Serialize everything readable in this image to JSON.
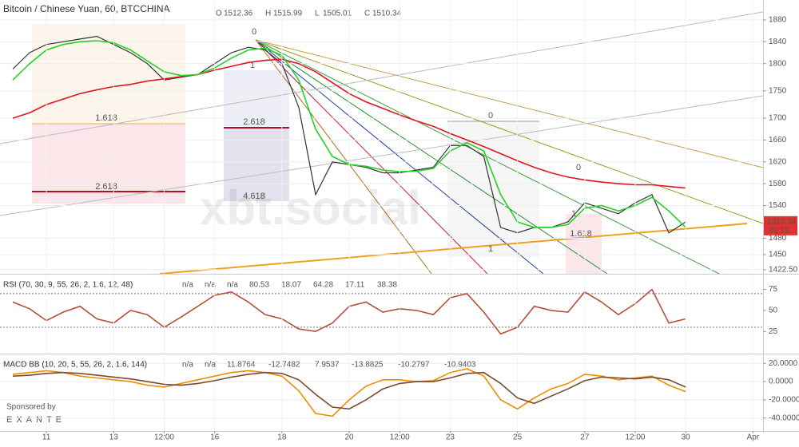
{
  "chart_data": [
    {
      "type": "line",
      "title": "Bitcoin / Chinese Yuan, 60, BTCCHINA",
      "ohlc": [
        {
          "label": "O",
          "value": 1512.36
        },
        {
          "label": "H",
          "value": 1515.99
        },
        {
          "label": "L",
          "value": 1505.01
        },
        {
          "label": "C",
          "value": 1510.34
        }
      ],
      "countdown": "01:19",
      "watermark": "xbt.social",
      "annotations": [
        "0",
        "1",
        "2.618",
        "4.618",
        "1.618",
        "2.618",
        "0",
        "1",
        "0",
        "1.618",
        "1"
      ],
      "x": [
        10,
        10.5,
        11,
        11.5,
        12,
        12.5,
        13,
        13.5,
        14,
        14.5,
        15,
        15.5,
        16,
        16.5,
        17,
        17.5,
        18,
        18.5,
        19,
        19.5,
        20,
        20.5,
        21,
        21.5,
        22,
        22.5,
        23,
        23.5,
        24,
        24.5,
        25,
        25.5,
        26,
        26.5,
        27,
        27.5,
        28,
        28.5,
        29,
        29.5,
        30
      ],
      "xlim": [
        9.62,
        32.3
      ],
      "ylim": [
        1415,
        1916.5
      ],
      "yticks": [
        1880,
        1840,
        1800,
        1750,
        1700,
        1660,
        1620,
        1580,
        1540,
        1480,
        1450,
        {
          "value": 1422.5,
          "label": "1422.50"
        }
      ],
      "grid": true,
      "series": [
        {
          "color": "#333333",
          "values": [
            1790,
            1820,
            1835,
            1840,
            1845,
            1850,
            1835,
            1820,
            1800,
            1770,
            1775,
            1780,
            1800,
            1820,
            1830,
            1825,
            1800,
            1720,
            1560,
            1620,
            1615,
            1610,
            1600,
            1600,
            1605,
            1610,
            1650,
            1650,
            1630,
            1500,
            1490,
            1500,
            1500,
            1510,
            1545,
            1535,
            1525,
            1545,
            1560,
            1490,
            1510
          ]
        },
        {
          "color": "#e0161e",
          "values": [
            1700,
            1710,
            1725,
            1735,
            1745,
            1752,
            1758,
            1762,
            1768,
            1772,
            1776,
            1780,
            1788,
            1795,
            1802,
            1806,
            1808,
            1800,
            1785,
            1765,
            1745,
            1730,
            1718,
            1706,
            1695,
            1685,
            1672,
            1660,
            1648,
            1635,
            1622,
            1610,
            1600,
            1592,
            1587,
            1583,
            1580,
            1578,
            1578,
            1575,
            1572
          ]
        },
        {
          "color": "#22d422",
          "values": [
            1770,
            1800,
            1825,
            1835,
            1840,
            1842,
            1838,
            1825,
            1805,
            1785,
            1778,
            1780,
            1792,
            1810,
            1825,
            1828,
            1815,
            1770,
            1680,
            1630,
            1615,
            1612,
            1605,
            1602,
            1603,
            1608,
            1640,
            1655,
            1640,
            1560,
            1510,
            1500,
            1500,
            1505,
            1535,
            1540,
            1530,
            1540,
            1555,
            1530,
            1500
          ]
        }
      ]
    },
    {
      "type": "line",
      "title": "RSI (70, 30, 9, 55, 26, 2, 1.6, 12, 48)",
      "readouts": [
        "n/a",
        "n/a",
        "n/a",
        "80.53",
        "18.07",
        "64.28",
        "17.11",
        "38.38"
      ],
      "levels": [
        70,
        30
      ],
      "x": [
        10,
        10.5,
        11,
        11.5,
        12,
        12.5,
        13,
        13.5,
        14,
        14.5,
        15,
        15.5,
        16,
        16.5,
        17,
        17.5,
        18,
        18.5,
        19,
        19.5,
        20,
        20.5,
        21,
        21.5,
        22,
        22.5,
        23,
        23.5,
        24,
        24.5,
        25,
        25.5,
        26,
        26.5,
        27,
        27.5,
        28,
        28.5,
        29,
        29.5,
        30
      ],
      "xlim": [
        9.62,
        32.3
      ],
      "ylim": [
        1.5,
        91.7
      ],
      "yticks": [
        75,
        50,
        25
      ],
      "grid": false,
      "series": [
        {
          "color": "#b5503a",
          "values": [
            60,
            52,
            38,
            48,
            55,
            40,
            35,
            50,
            45,
            30,
            42,
            55,
            68,
            72,
            60,
            45,
            40,
            28,
            25,
            35,
            55,
            60,
            48,
            52,
            50,
            45,
            65,
            70,
            48,
            22,
            30,
            55,
            50,
            48,
            72,
            60,
            45,
            58,
            75,
            35,
            40
          ]
        }
      ]
    },
    {
      "type": "line",
      "title": "MACD BB (10, 20, 5, 55, 26, 2, 1.6, 144)",
      "readouts": [
        "n/a",
        "n/a",
        "11.8764",
        "-12.7482",
        "7.9537",
        "-13.8825",
        "-10.2797",
        "-10.9403"
      ],
      "x": [
        10,
        10.5,
        11,
        11.5,
        12,
        12.5,
        13,
        13.5,
        14,
        14.5,
        15,
        15.5,
        16,
        16.5,
        17,
        17.5,
        18,
        18.5,
        19,
        19.5,
        20,
        20.5,
        21,
        21.5,
        22,
        22.5,
        23,
        23.5,
        24,
        24.5,
        25,
        25.5,
        26,
        26.5,
        27,
        27.5,
        28,
        28.5,
        29,
        29.5,
        30
      ],
      "xlim": [
        9.62,
        32.3
      ],
      "ylim": [
        -54.3,
        29
      ],
      "yticks": [
        {
          "value": 20,
          "label": "20.0000"
        },
        {
          "value": 0,
          "label": "0.0000"
        },
        {
          "value": -20,
          "label": "-20.0000"
        },
        {
          "value": -40,
          "label": "-40.0000"
        }
      ],
      "xticks": [
        11,
        13,
        {
          "value": 14.5,
          "label": "12:00"
        },
        16,
        18,
        20,
        {
          "value": 21.5,
          "label": "12:00"
        },
        23,
        25,
        27,
        {
          "value": 28.5,
          "label": "12:00"
        },
        30,
        {
          "value": 32,
          "label": "Apr"
        }
      ],
      "grid": true,
      "series": [
        {
          "color": "#f08c00",
          "values": [
            8,
            10,
            12,
            10,
            6,
            4,
            2,
            0,
            -4,
            -6,
            -2,
            2,
            6,
            10,
            12,
            10,
            6,
            -10,
            -35,
            -38,
            -20,
            -5,
            2,
            2,
            0,
            1,
            10,
            14,
            6,
            -20,
            -30,
            -18,
            -8,
            -2,
            8,
            6,
            2,
            4,
            6,
            -4,
            -11
          ]
        },
        {
          "color": "#7a4a2a",
          "values": [
            6,
            7,
            9,
            10,
            9,
            7,
            5,
            3,
            0,
            -3,
            -4,
            -2,
            1,
            5,
            8,
            10,
            9,
            2,
            -14,
            -28,
            -30,
            -20,
            -8,
            -2,
            0,
            0,
            4,
            9,
            10,
            -2,
            -18,
            -24,
            -16,
            -8,
            1,
            5,
            4,
            3,
            5,
            2,
            -6
          ]
        }
      ]
    }
  ],
  "sponsor": {
    "label": "Sponsored by",
    "name": "EXANTE"
  }
}
